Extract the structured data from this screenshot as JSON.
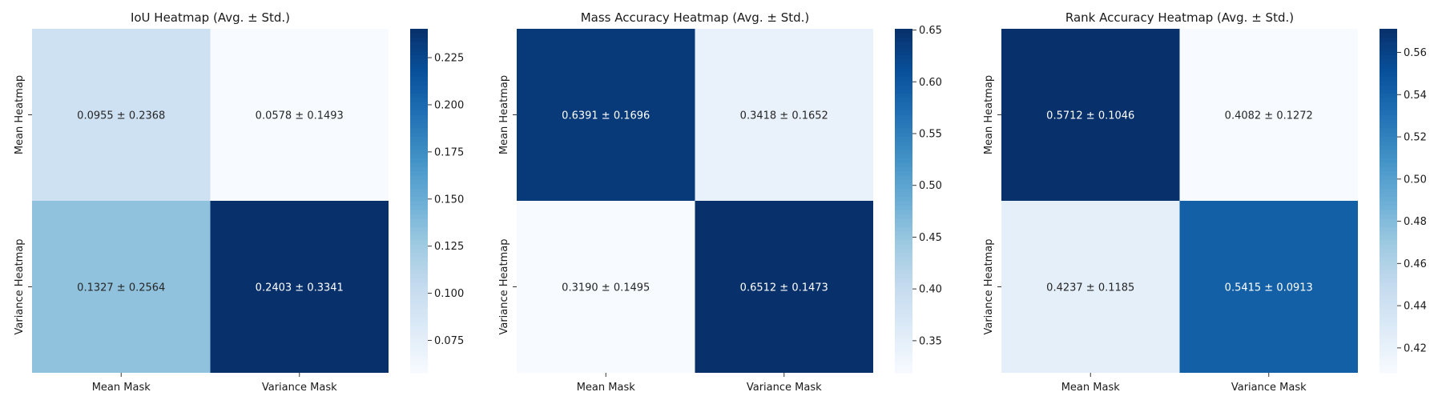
{
  "chart_data": [
    {
      "type": "heatmap",
      "title": "IoU Heatmap (Avg. ± Std.)",
      "x_categories": [
        "Mean Mask",
        "Variance Mask"
      ],
      "y_categories": [
        "Mean Heatmap",
        "Variance Heatmap"
      ],
      "values": [
        [
          0.0955,
          0.0578
        ],
        [
          0.1327,
          0.2403
        ]
      ],
      "std": [
        [
          0.2368,
          0.1493
        ],
        [
          0.2564,
          0.3341
        ]
      ],
      "annotations": [
        [
          "0.0955 ± 0.2368",
          "0.0578 ± 0.1493"
        ],
        [
          "0.1327 ± 0.2564",
          "0.2403 ± 0.3341"
        ]
      ],
      "colorbar_range": [
        0.0578,
        0.2403
      ],
      "colorbar_ticks": [
        "0.075",
        "0.100",
        "0.125",
        "0.150",
        "0.175",
        "0.200",
        "0.225"
      ],
      "colormap": "Blues"
    },
    {
      "type": "heatmap",
      "title": "Mass Accuracy Heatmap (Avg. ± Std.)",
      "x_categories": [
        "Mean Mask",
        "Variance Mask"
      ],
      "y_categories": [
        "Mean Heatmap",
        "Variance Heatmap"
      ],
      "values": [
        [
          0.6391,
          0.3418
        ],
        [
          0.319,
          0.6512
        ]
      ],
      "std": [
        [
          0.1696,
          0.1652
        ],
        [
          0.1495,
          0.1473
        ]
      ],
      "annotations": [
        [
          "0.6391 ± 0.1696",
          "0.3418 ± 0.1652"
        ],
        [
          "0.3190 ± 0.1495",
          "0.6512 ± 0.1473"
        ]
      ],
      "colorbar_range": [
        0.319,
        0.6512
      ],
      "colorbar_ticks": [
        "0.35",
        "0.40",
        "0.45",
        "0.50",
        "0.55",
        "0.60",
        "0.65"
      ],
      "colormap": "Blues"
    },
    {
      "type": "heatmap",
      "title": "Rank Accuracy Heatmap (Avg. ± Std.)",
      "x_categories": [
        "Mean Mask",
        "Variance Mask"
      ],
      "y_categories": [
        "Mean Heatmap",
        "Variance Heatmap"
      ],
      "values": [
        [
          0.5712,
          0.4082
        ],
        [
          0.4237,
          0.5415
        ]
      ],
      "std": [
        [
          0.1046,
          0.1272
        ],
        [
          0.1185,
          0.0913
        ]
      ],
      "annotations": [
        [
          "0.5712 ± 0.1046",
          "0.4082 ± 0.1272"
        ],
        [
          "0.4237 ± 0.1185",
          "0.5415 ± 0.0913"
        ]
      ],
      "colorbar_range": [
        0.4082,
        0.5712
      ],
      "colorbar_ticks": [
        "0.42",
        "0.44",
        "0.46",
        "0.48",
        "0.50",
        "0.52",
        "0.54",
        "0.56"
      ],
      "colormap": "Blues"
    }
  ]
}
